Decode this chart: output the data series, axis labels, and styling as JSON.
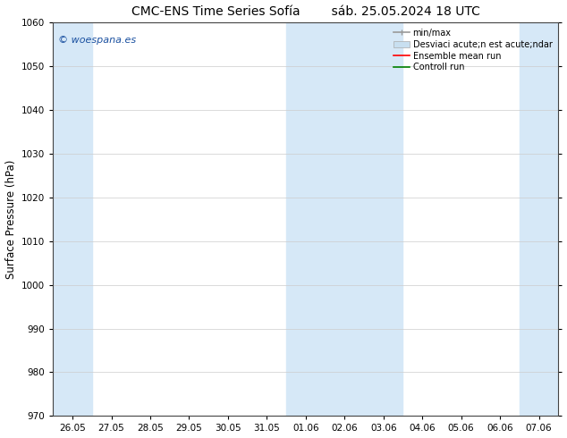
{
  "title_left": "CMC-ENS Time Series Sofía",
  "title_right": "sáb. 25.05.2024 18 UTC",
  "ylabel": "Surface Pressure (hPa)",
  "ylim": [
    970,
    1060
  ],
  "yticks": [
    970,
    980,
    990,
    1000,
    1010,
    1020,
    1030,
    1040,
    1050,
    1060
  ],
  "xtick_labels": [
    "26.05",
    "27.05",
    "28.05",
    "29.05",
    "30.05",
    "31.05",
    "01.06",
    "02.06",
    "03.06",
    "04.06",
    "05.06",
    "06.06",
    "07.06"
  ],
  "shaded_indices": [
    0,
    6,
    7,
    8,
    12
  ],
  "shaded_color": "#d6e8f7",
  "watermark": "© woespana.es",
  "watermark_color": "#1a50a0",
  "background_color": "#ffffff",
  "plot_bg_color": "#ffffff",
  "grid_color": "#cccccc",
  "legend_label_minmax": "min/max",
  "legend_label_std": "Desviaci acute;n est acute;ndar",
  "legend_label_ensemble": "Ensemble mean run",
  "legend_label_control": "Controll run",
  "legend_color_minmax": "#999999",
  "legend_color_std": "#c8dff0",
  "legend_color_ensemble": "#ff0000",
  "legend_color_control": "#008000",
  "title_fontsize": 10,
  "tick_fontsize": 7.5,
  "ylabel_fontsize": 8.5,
  "legend_fontsize": 7,
  "watermark_fontsize": 8
}
